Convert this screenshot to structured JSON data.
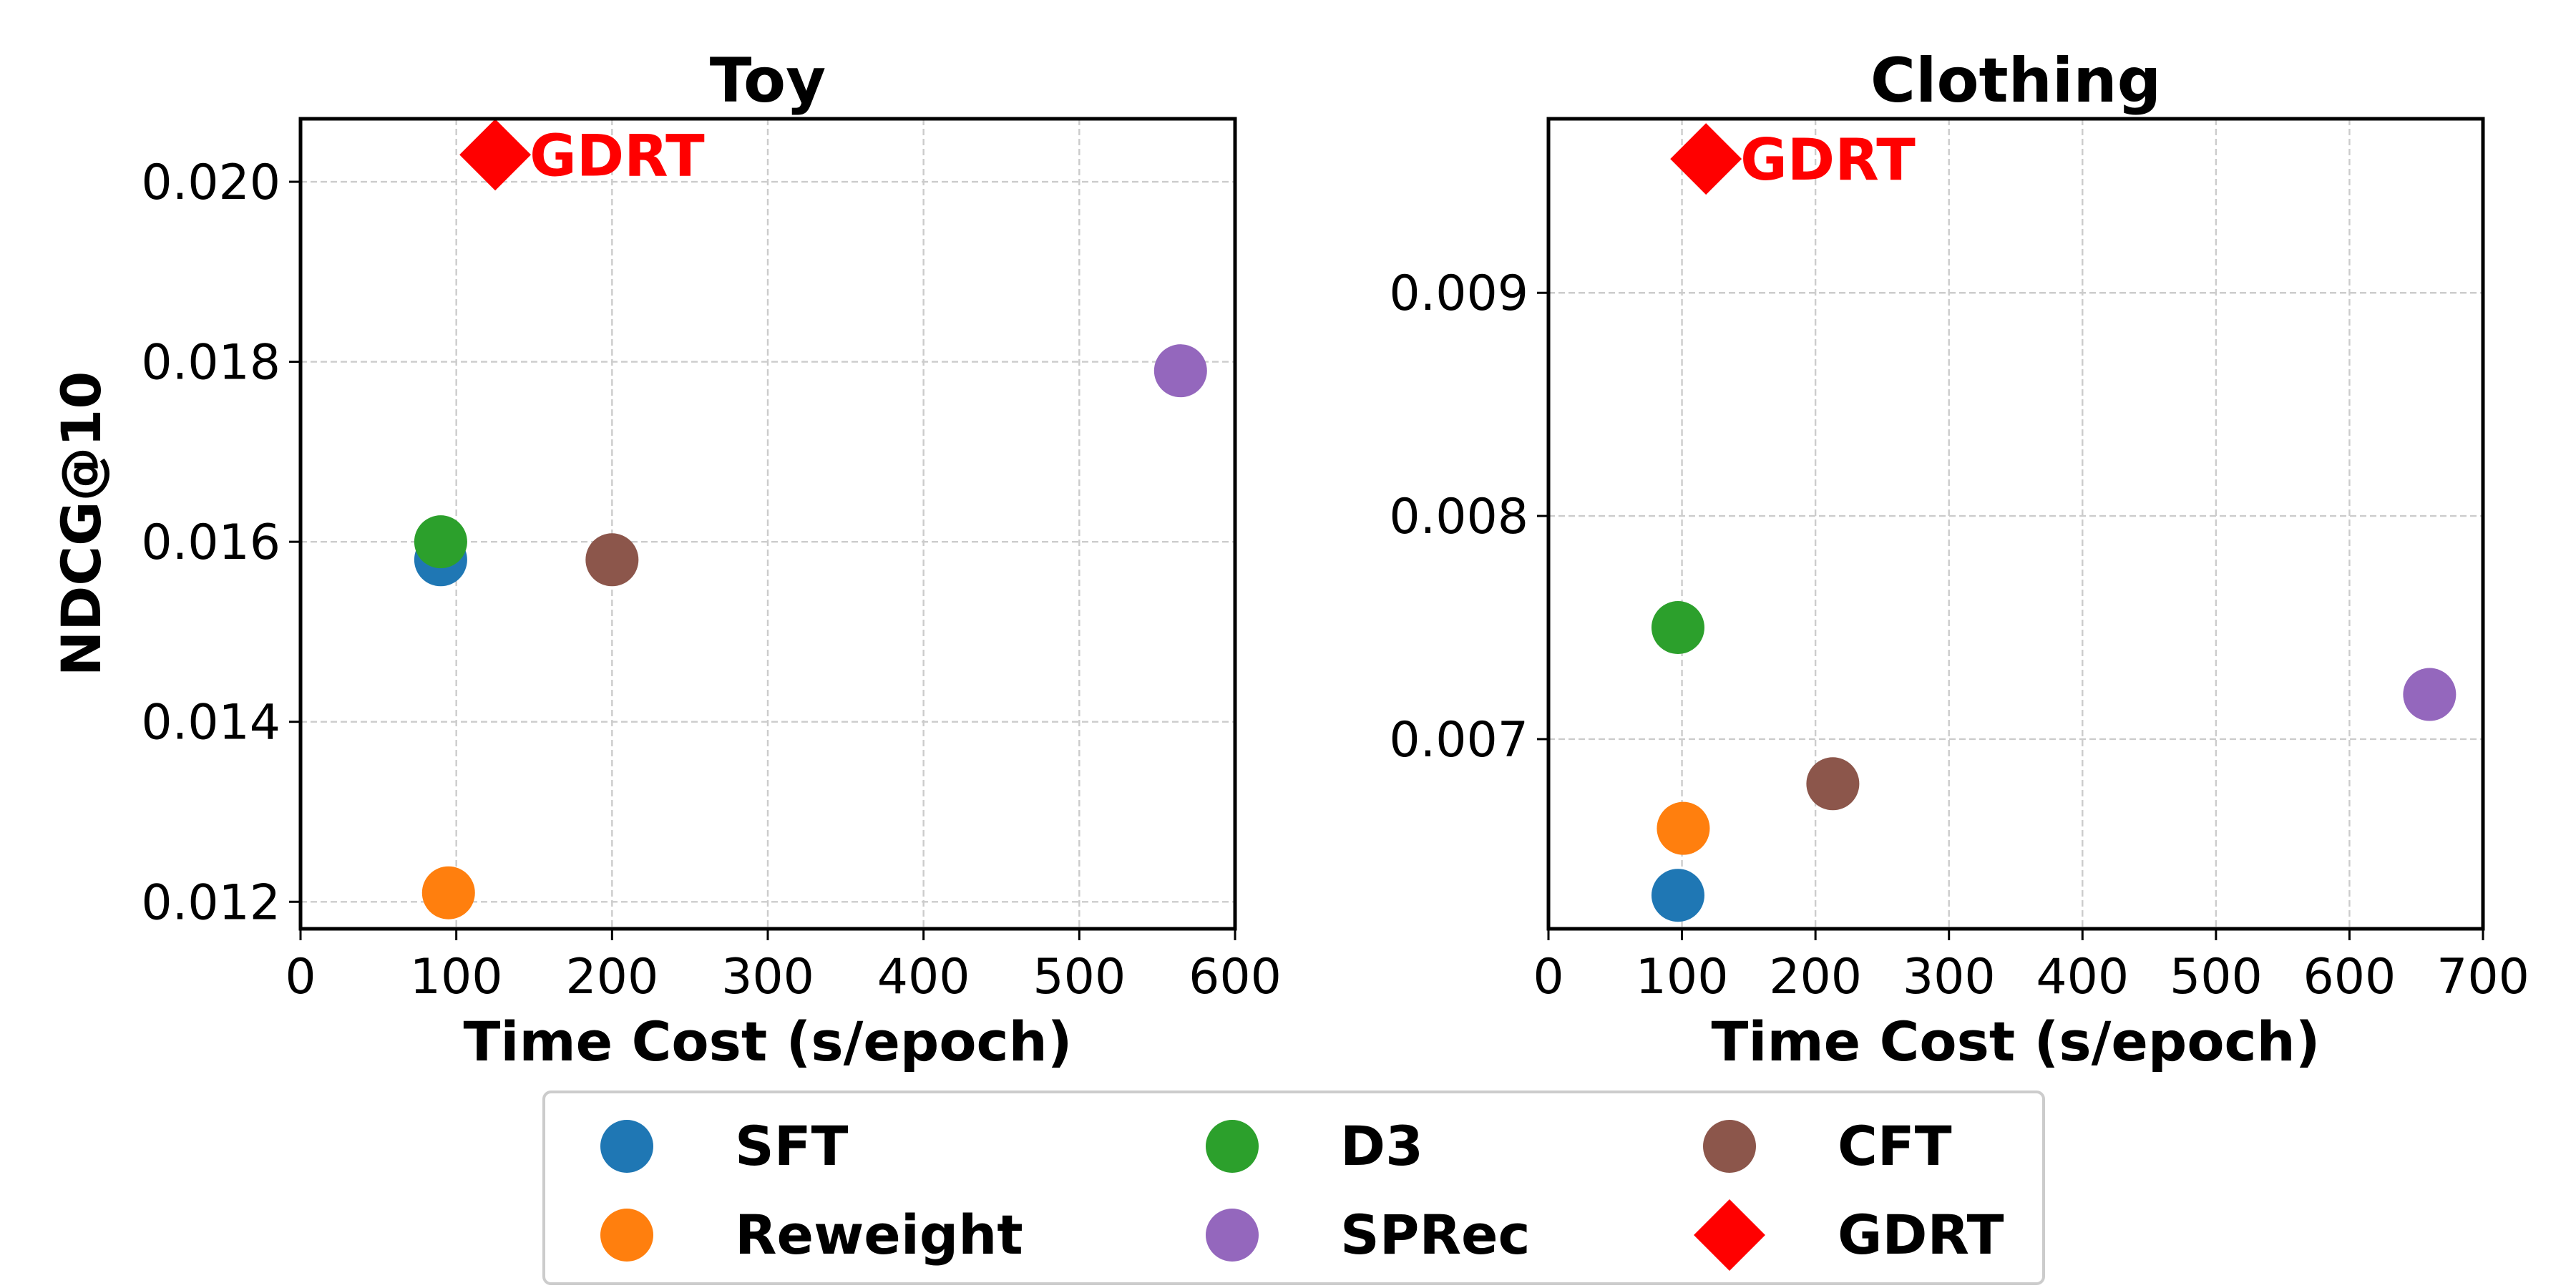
{
  "legend": [
    {
      "name": "SFT",
      "color": "#1f77b4",
      "marker": "circle"
    },
    {
      "name": "D3",
      "color": "#2ca02c",
      "marker": "circle"
    },
    {
      "name": "CFT",
      "color": "#8c564b",
      "marker": "circle"
    },
    {
      "name": "Reweight",
      "color": "#ff7f0e",
      "marker": "circle"
    },
    {
      "name": "SPRec",
      "color": "#9467bd",
      "marker": "circle"
    },
    {
      "name": "GDRT",
      "color": "#ff0000",
      "marker": "diamond"
    }
  ],
  "chart_data": [
    {
      "type": "scatter",
      "title": "Toy",
      "xlabel": "Time Cost (s/epoch)",
      "ylabel": "NDCG@10",
      "xlim": [
        0,
        600
      ],
      "ylim": [
        0.0117,
        0.0207
      ],
      "xticks": [
        0,
        100,
        200,
        300,
        400,
        500,
        600
      ],
      "yticks": [
        0.012,
        0.014,
        0.016,
        0.018,
        0.02
      ],
      "ytick_labels": [
        "0.012",
        "0.014",
        "0.016",
        "0.018",
        "0.020"
      ],
      "grid": true,
      "annotation": {
        "text": "GDRT",
        "series": "GDRT"
      },
      "series": [
        {
          "name": "SFT",
          "x": 90,
          "y": 0.0158
        },
        {
          "name": "D3",
          "x": 90,
          "y": 0.016
        },
        {
          "name": "CFT",
          "x": 200,
          "y": 0.0158
        },
        {
          "name": "Reweight",
          "x": 95,
          "y": 0.0121
        },
        {
          "name": "SPRec",
          "x": 565,
          "y": 0.0179
        },
        {
          "name": "GDRT",
          "x": 125,
          "y": 0.0203
        }
      ]
    },
    {
      "type": "scatter",
      "title": "Clothing",
      "xlabel": "Time Cost (s/epoch)",
      "ylabel": "",
      "xlim": [
        0,
        700
      ],
      "ylim": [
        0.00615,
        0.00978
      ],
      "xticks": [
        0,
        100,
        200,
        300,
        400,
        500,
        600,
        700
      ],
      "yticks": [
        0.007,
        0.008,
        0.009
      ],
      "ytick_labels": [
        "0.007",
        "0.008",
        "0.009"
      ],
      "grid": true,
      "annotation": {
        "text": "GDRT",
        "series": "GDRT"
      },
      "series": [
        {
          "name": "SFT",
          "x": 97,
          "y": 0.0063
        },
        {
          "name": "D3",
          "x": 97,
          "y": 0.0075
        },
        {
          "name": "CFT",
          "x": 213,
          "y": 0.0068
        },
        {
          "name": "Reweight",
          "x": 101,
          "y": 0.0066
        },
        {
          "name": "SPRec",
          "x": 660,
          "y": 0.0072
        },
        {
          "name": "GDRT",
          "x": 118,
          "y": 0.0096
        }
      ]
    }
  ]
}
